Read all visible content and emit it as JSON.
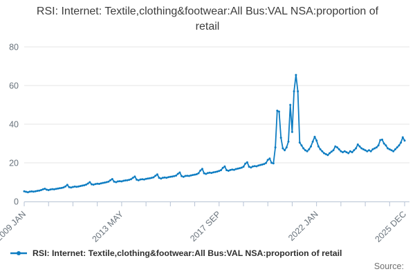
{
  "title": "RSI: Internet: Textile,clothing&footwear:All Bus:VAL NSA:proportion of retail",
  "legend": {
    "label": "RSI: Internet: Textile,clothing&footwear:All Bus:VAL NSA:proportion of retail"
  },
  "source": "Source:",
  "colors": {
    "series": "#0e7dc2",
    "gridline": "#e4e4e4",
    "axis": "#b6c2d4",
    "tick_label": "#68727b"
  },
  "chart_data": {
    "type": "line",
    "title": "RSI: Internet: Textile,clothing&footwear:All Bus:VAL NSA:proportion of retail",
    "series_name": "RSI: Internet: Textile,clothing&footwear:All Bus:VAL NSA:proportion of retail",
    "color": "#0e7dc2",
    "x_unit": "month",
    "x_range": [
      "2009 JAN",
      "2025 DEC"
    ],
    "x_tick_labels": [
      "2009 JAN",
      "2013 MAY",
      "2017 SEP",
      "2022 JAN",
      "2025 DEC"
    ],
    "x_tick_month_index": [
      0,
      52,
      104,
      156,
      203
    ],
    "x_minor_tick_every_months": 13,
    "ylabel": "",
    "xlabel": "",
    "ylim": [
      0,
      80
    ],
    "y_ticks": [
      0,
      20,
      40,
      60,
      80
    ],
    "grid": "horizontal",
    "legend_position": "bottom-left",
    "marker": "circle",
    "values": [
      5.3,
      5.0,
      4.8,
      5.1,
      5.2,
      5.1,
      5.3,
      5.5,
      5.6,
      5.9,
      6.3,
      6.6,
      6.1,
      5.9,
      6.2,
      6.4,
      6.3,
      6.5,
      6.7,
      6.9,
      7.0,
      7.3,
      7.8,
      8.6,
      7.4,
      7.2,
      7.5,
      7.7,
      7.6,
      7.8,
      8.0,
      8.2,
      8.4,
      8.7,
      9.3,
      10.0,
      8.9,
      8.7,
      9.0,
      9.2,
      9.1,
      9.4,
      9.6,
      9.8,
      10.0,
      10.3,
      11.0,
      11.6,
      10.3,
      10.0,
      10.4,
      10.5,
      10.4,
      10.7,
      10.9,
      11.0,
      11.2,
      11.5,
      12.2,
      12.9,
      11.3,
      11.0,
      11.4,
      11.5,
      11.4,
      11.7,
      11.9,
      12.0,
      12.2,
      12.5,
      13.3,
      14.0,
      12.2,
      11.9,
      12.3,
      12.4,
      12.3,
      12.6,
      12.8,
      12.9,
      13.1,
      13.4,
      14.3,
      15.0,
      13.1,
      12.8,
      13.2,
      13.3,
      13.2,
      13.5,
      13.7,
      13.9,
      14.1,
      14.6,
      16.0,
      16.9,
      14.6,
      14.3,
      14.7,
      14.9,
      14.8,
      15.1,
      15.3,
      15.5,
      15.8,
      16.2,
      17.4,
      18.1,
      16.2,
      15.9,
      16.3,
      16.5,
      16.4,
      16.8,
      17.0,
      17.2,
      17.5,
      18.0,
      19.6,
      20.3,
      18.0,
      17.6,
      18.1,
      18.3,
      18.2,
      18.6,
      18.9,
      19.1,
      19.4,
      19.9,
      21.5,
      22.2,
      20.0,
      19.7,
      28.0,
      47.0,
      46.5,
      33.0,
      27.5,
      26.5,
      28.0,
      31.0,
      50.0,
      36.0,
      57.0,
      65.5,
      57.0,
      30.5,
      29.0,
      27.5,
      26.5,
      26.0,
      27.0,
      28.5,
      31.0,
      33.5,
      31.5,
      28.5,
      27.0,
      26.0,
      25.0,
      24.5,
      24.0,
      25.0,
      25.8,
      26.5,
      28.5,
      28.0,
      27.0,
      26.0,
      25.5,
      26.0,
      25.5,
      25.0,
      26.0,
      25.5,
      26.5,
      27.5,
      29.5,
      28.5,
      27.5,
      27.0,
      26.5,
      26.0,
      26.5,
      26.0,
      27.0,
      27.5,
      28.0,
      29.0,
      31.8,
      32.0,
      30.0,
      29.0,
      27.5,
      27.0,
      26.5,
      26.0,
      27.0,
      28.0,
      29.0,
      30.5,
      33.2,
      31.5
    ]
  }
}
